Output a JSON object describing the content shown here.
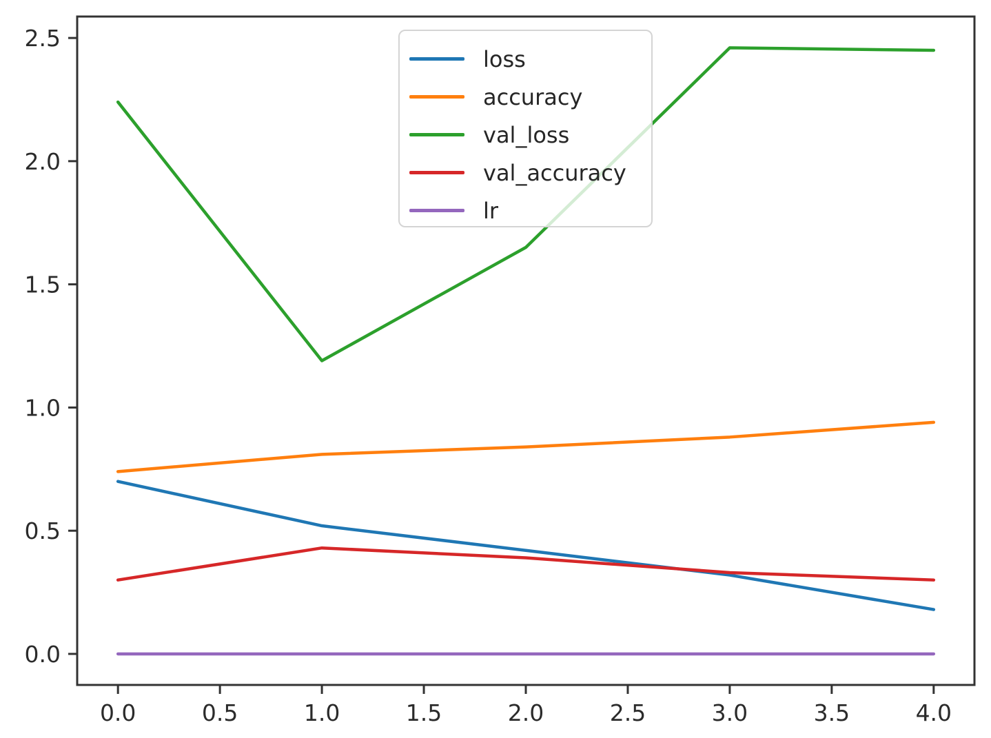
{
  "chart_data": {
    "type": "line",
    "title": "",
    "xlabel": "",
    "ylabel": "",
    "grid": false,
    "x": [
      0,
      1,
      2,
      3,
      4
    ],
    "series": [
      {
        "name": "loss",
        "color": "#1f77b4",
        "values": [
          0.7,
          0.52,
          0.42,
          0.32,
          0.18
        ]
      },
      {
        "name": "accuracy",
        "color": "#ff7f0e",
        "values": [
          0.74,
          0.81,
          0.84,
          0.88,
          0.94
        ]
      },
      {
        "name": "val_loss",
        "color": "#2ca02c",
        "values": [
          2.24,
          1.19,
          1.65,
          2.46,
          2.45
        ]
      },
      {
        "name": "val_accuracy",
        "color": "#d62728",
        "values": [
          0.3,
          0.43,
          0.39,
          0.33,
          0.3
        ]
      },
      {
        "name": "lr",
        "color": "#9467bd",
        "values": [
          0.0,
          0.0,
          0.0,
          0.0,
          0.0
        ]
      }
    ],
    "xticks": {
      "values": [
        0,
        0.5,
        1,
        1.5,
        2,
        2.5,
        3,
        3.5,
        4
      ],
      "labels": [
        "0.0",
        "0.5",
        "1.0",
        "1.5",
        "2.0",
        "2.5",
        "3.0",
        "3.5",
        "4.0"
      ]
    },
    "yticks": {
      "values": [
        0,
        0.5,
        1,
        1.5,
        2,
        2.5
      ],
      "labels": [
        "0.0",
        "0.5",
        "1.0",
        "1.5",
        "2.0",
        "2.5"
      ]
    },
    "xlim": [
      -0.2,
      4.2
    ],
    "ylim": [
      -0.126,
      2.587
    ],
    "legend": {
      "position": "upper center",
      "entries": [
        "loss",
        "accuracy",
        "val_loss",
        "val_accuracy",
        "lr"
      ]
    }
  },
  "style": {
    "axes_color": "#333333",
    "background": "#ffffff"
  }
}
